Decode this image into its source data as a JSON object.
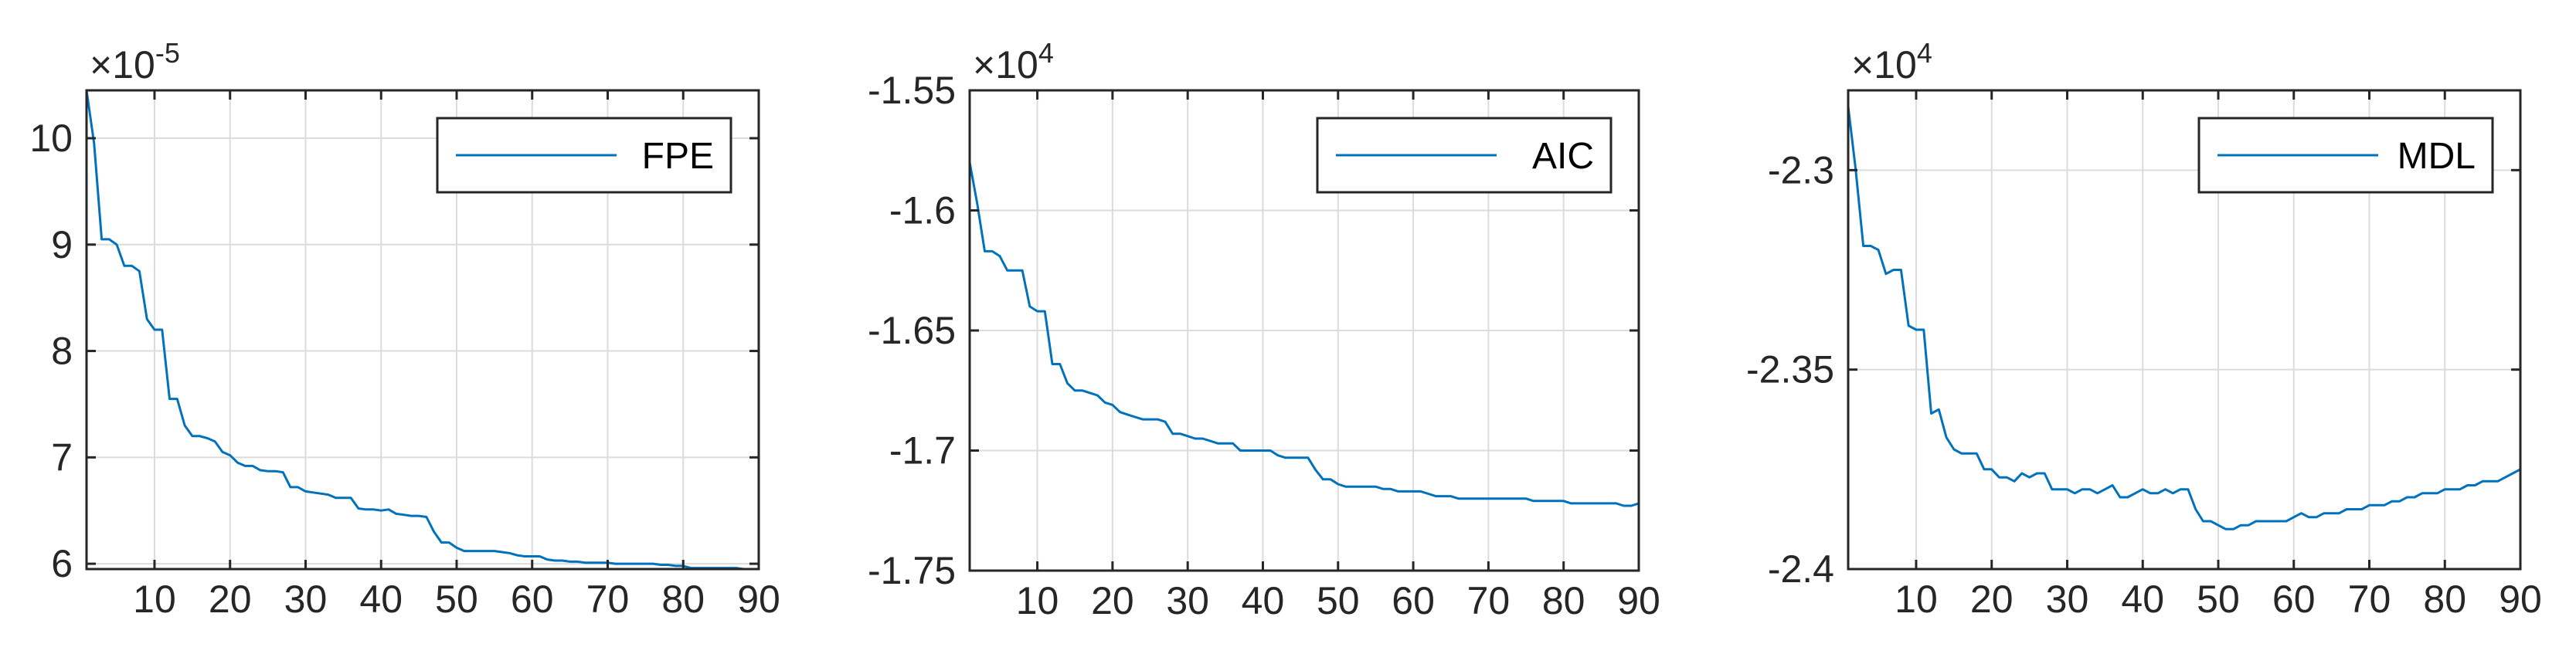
{
  "chart_data": [
    {
      "type": "line",
      "title": "",
      "xlabel": "",
      "ylabel": "",
      "multiplier": "×10",
      "exponent": "-5",
      "xlim": [
        1,
        90
      ],
      "ylim": [
        5.95,
        10.45
      ],
      "xticks": [
        10,
        20,
        30,
        40,
        50,
        60,
        70,
        80,
        90
      ],
      "xtick_labels": [
        "10",
        "20",
        "30",
        "40",
        "50",
        "60",
        "70",
        "80",
        "90"
      ],
      "yticks": [
        6,
        7,
        8,
        9,
        10
      ],
      "ytick_labels": [
        "6",
        "7",
        "8",
        "9",
        "10"
      ],
      "grid": true,
      "legend_position": "top-right",
      "series": [
        {
          "name": "FPE",
          "color": "#0072BD",
          "x": [
            1,
            2,
            3,
            4,
            5,
            6,
            7,
            8,
            9,
            10,
            11,
            12,
            13,
            14,
            15,
            16,
            17,
            18,
            19,
            20,
            21,
            22,
            23,
            24,
            25,
            26,
            27,
            28,
            29,
            30,
            31,
            32,
            33,
            34,
            35,
            36,
            37,
            38,
            39,
            40,
            41,
            42,
            43,
            44,
            45,
            46,
            47,
            48,
            49,
            50,
            51,
            52,
            53,
            54,
            55,
            56,
            57,
            58,
            59,
            60,
            61,
            62,
            63,
            64,
            65,
            66,
            67,
            68,
            69,
            70,
            71,
            72,
            73,
            74,
            75,
            76,
            77,
            78,
            79,
            80,
            81,
            82,
            83,
            84,
            85,
            86,
            87,
            88,
            89,
            90
          ],
          "values": [
            10.45,
            9.95,
            9.05,
            9.05,
            9.0,
            8.8,
            8.8,
            8.75,
            8.3,
            8.2,
            8.2,
            7.55,
            7.55,
            7.3,
            7.2,
            7.2,
            7.18,
            7.15,
            7.05,
            7.02,
            6.95,
            6.92,
            6.92,
            6.88,
            6.87,
            6.87,
            6.86,
            6.72,
            6.72,
            6.68,
            6.67,
            6.66,
            6.65,
            6.62,
            6.62,
            6.62,
            6.52,
            6.51,
            6.51,
            6.5,
            6.51,
            6.47,
            6.46,
            6.45,
            6.45,
            6.44,
            6.3,
            6.2,
            6.2,
            6.15,
            6.12,
            6.12,
            6.12,
            6.12,
            6.12,
            6.11,
            6.1,
            6.08,
            6.07,
            6.07,
            6.07,
            6.04,
            6.03,
            6.03,
            6.02,
            6.02,
            6.01,
            6.01,
            6.01,
            6.01,
            6.0,
            6.0,
            6.0,
            6.0,
            6.0,
            6.0,
            5.99,
            5.99,
            5.98,
            5.98,
            5.96,
            5.96,
            5.96,
            5.96,
            5.96,
            5.96,
            5.96,
            5.95,
            5.95,
            5.95
          ]
        }
      ]
    },
    {
      "type": "line",
      "title": "",
      "xlabel": "",
      "ylabel": "",
      "multiplier": "×10",
      "exponent": "4",
      "xlim": [
        1,
        90
      ],
      "ylim": [
        -1.75,
        -1.55
      ],
      "xticks": [
        10,
        20,
        30,
        40,
        50,
        60,
        70,
        80,
        90
      ],
      "xtick_labels": [
        "10",
        "20",
        "30",
        "40",
        "50",
        "60",
        "70",
        "80",
        "90"
      ],
      "yticks": [
        -1.55,
        -1.6,
        -1.65,
        -1.7,
        -1.75
      ],
      "ytick_labels": [
        "-1.55",
        "-1.6",
        "-1.65",
        "-1.7",
        "-1.75"
      ],
      "grid": true,
      "legend_position": "top-right",
      "series": [
        {
          "name": "AIC",
          "color": "#0072BD",
          "x": [
            1,
            2,
            3,
            4,
            5,
            6,
            7,
            8,
            9,
            10,
            11,
            12,
            13,
            14,
            15,
            16,
            17,
            18,
            19,
            20,
            21,
            22,
            23,
            24,
            25,
            26,
            27,
            28,
            29,
            30,
            31,
            32,
            33,
            34,
            35,
            36,
            37,
            38,
            39,
            40,
            41,
            42,
            43,
            44,
            45,
            46,
            47,
            48,
            49,
            50,
            51,
            52,
            53,
            54,
            55,
            56,
            57,
            58,
            59,
            60,
            61,
            62,
            63,
            64,
            65,
            66,
            67,
            68,
            69,
            70,
            71,
            72,
            73,
            74,
            75,
            76,
            77,
            78,
            79,
            80,
            81,
            82,
            83,
            84,
            85,
            86,
            87,
            88,
            89,
            90
          ],
          "values": [
            -1.58,
            -1.597,
            -1.617,
            -1.617,
            -1.619,
            -1.625,
            -1.625,
            -1.625,
            -1.64,
            -1.642,
            -1.642,
            -1.664,
            -1.664,
            -1.672,
            -1.675,
            -1.675,
            -1.676,
            -1.677,
            -1.68,
            -1.681,
            -1.684,
            -1.685,
            -1.686,
            -1.687,
            -1.687,
            -1.687,
            -1.688,
            -1.693,
            -1.693,
            -1.694,
            -1.695,
            -1.695,
            -1.696,
            -1.697,
            -1.697,
            -1.697,
            -1.7,
            -1.7,
            -1.7,
            -1.7,
            -1.7,
            -1.702,
            -1.703,
            -1.703,
            -1.703,
            -1.703,
            -1.708,
            -1.712,
            -1.712,
            -1.714,
            -1.715,
            -1.715,
            -1.715,
            -1.715,
            -1.715,
            -1.716,
            -1.716,
            -1.717,
            -1.717,
            -1.717,
            -1.717,
            -1.718,
            -1.719,
            -1.719,
            -1.719,
            -1.72,
            -1.72,
            -1.72,
            -1.72,
            -1.72,
            -1.72,
            -1.72,
            -1.72,
            -1.72,
            -1.72,
            -1.721,
            -1.721,
            -1.721,
            -1.721,
            -1.721,
            -1.722,
            -1.722,
            -1.722,
            -1.722,
            -1.722,
            -1.722,
            -1.722,
            -1.723,
            -1.723,
            -1.722
          ]
        }
      ]
    },
    {
      "type": "line",
      "title": "",
      "xlabel": "",
      "ylabel": "",
      "multiplier": "×10",
      "exponent": "4",
      "xlim": [
        1,
        90
      ],
      "ylim": [
        -2.4,
        -2.28
      ],
      "xticks": [
        10,
        20,
        30,
        40,
        50,
        60,
        70,
        80,
        90
      ],
      "xtick_labels": [
        "10",
        "20",
        "30",
        "40",
        "50",
        "60",
        "70",
        "80",
        "90"
      ],
      "yticks": [
        -2.3,
        -2.35,
        -2.4
      ],
      "ytick_labels": [
        "-2.3",
        "-2.35",
        "-2.4"
      ],
      "grid": true,
      "legend_position": "top-right",
      "series": [
        {
          "name": "MDL",
          "color": "#0072BD",
          "x": [
            1,
            2,
            3,
            4,
            5,
            6,
            7,
            8,
            9,
            10,
            11,
            12,
            13,
            14,
            15,
            16,
            17,
            18,
            19,
            20,
            21,
            22,
            23,
            24,
            25,
            26,
            27,
            28,
            29,
            30,
            31,
            32,
            33,
            34,
            35,
            36,
            37,
            38,
            39,
            40,
            41,
            42,
            43,
            44,
            45,
            46,
            47,
            48,
            49,
            50,
            51,
            52,
            53,
            54,
            55,
            56,
            57,
            58,
            59,
            60,
            61,
            62,
            63,
            64,
            65,
            66,
            67,
            68,
            69,
            70,
            71,
            72,
            73,
            74,
            75,
            76,
            77,
            78,
            79,
            80,
            81,
            82,
            83,
            84,
            85,
            86,
            87,
            88,
            89,
            90
          ],
          "values": [
            -2.284,
            -2.3,
            -2.319,
            -2.319,
            -2.32,
            -2.326,
            -2.325,
            -2.325,
            -2.339,
            -2.34,
            -2.34,
            -2.361,
            -2.36,
            -2.367,
            -2.37,
            -2.371,
            -2.371,
            -2.371,
            -2.375,
            -2.375,
            -2.377,
            -2.377,
            -2.378,
            -2.376,
            -2.377,
            -2.376,
            -2.376,
            -2.38,
            -2.38,
            -2.38,
            -2.381,
            -2.38,
            -2.38,
            -2.381,
            -2.38,
            -2.379,
            -2.382,
            -2.382,
            -2.381,
            -2.38,
            -2.381,
            -2.381,
            -2.38,
            -2.381,
            -2.38,
            -2.38,
            -2.385,
            -2.388,
            -2.388,
            -2.389,
            -2.39,
            -2.39,
            -2.389,
            -2.389,
            -2.388,
            -2.388,
            -2.388,
            -2.388,
            -2.388,
            -2.387,
            -2.386,
            -2.387,
            -2.387,
            -2.386,
            -2.386,
            -2.386,
            -2.385,
            -2.385,
            -2.385,
            -2.384,
            -2.384,
            -2.384,
            -2.383,
            -2.383,
            -2.382,
            -2.382,
            -2.381,
            -2.381,
            -2.381,
            -2.38,
            -2.38,
            -2.38,
            -2.379,
            -2.379,
            -2.378,
            -2.378,
            -2.378,
            -2.377,
            -2.376,
            -2.375
          ]
        }
      ]
    }
  ]
}
